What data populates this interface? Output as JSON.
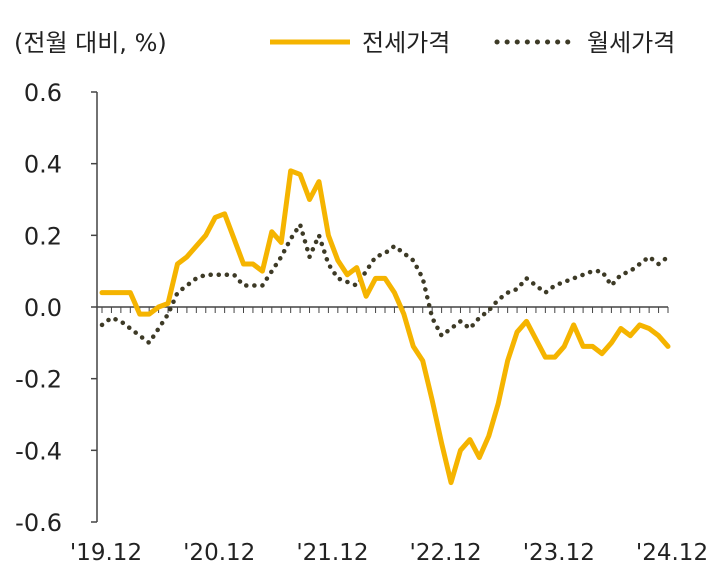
{
  "chart_data": {
    "type": "line",
    "unit_label": "(전월 대비, %)",
    "ylim": [
      -0.6,
      0.6
    ],
    "y_ticks": [
      "0.6",
      "0.4",
      "0.2",
      "0.0",
      "-0.2",
      "-0.4",
      "-0.6"
    ],
    "x_ticks": [
      "'19.12",
      "'20.12",
      "'21.12",
      "'22.12",
      "'23.12",
      "'24.12"
    ],
    "x_tick_positions": [
      0,
      12,
      24,
      36,
      48,
      60
    ],
    "legend": [
      "전세가격",
      "월세가격"
    ],
    "colors": {
      "jeonse": "#f5b400",
      "wolse": "#3d3a26",
      "axis": "#444444"
    },
    "series": [
      {
        "name": "전세가격",
        "style": "solid",
        "values": [
          0.04,
          0.04,
          0.04,
          0.04,
          -0.02,
          -0.02,
          0.0,
          0.01,
          0.12,
          0.14,
          0.17,
          0.2,
          0.25,
          0.26,
          0.19,
          0.12,
          0.12,
          0.1,
          0.21,
          0.18,
          0.38,
          0.37,
          0.3,
          0.35,
          0.2,
          0.13,
          0.09,
          0.11,
          0.03,
          0.08,
          0.08,
          0.04,
          -0.02,
          -0.11,
          -0.15,
          -0.26,
          -0.38,
          -0.49,
          -0.4,
          -0.37,
          -0.42,
          -0.36,
          -0.27,
          -0.15,
          -0.07,
          -0.04,
          -0.09,
          -0.14,
          -0.14,
          -0.11,
          -0.05,
          -0.11,
          -0.11,
          -0.13,
          -0.1,
          -0.06,
          -0.08,
          -0.05,
          -0.06,
          -0.08,
          -0.11
        ]
      },
      {
        "name": "월세가격",
        "style": "dotted",
        "values": [
          -0.05,
          -0.03,
          -0.04,
          -0.06,
          -0.08,
          -0.1,
          -0.06,
          -0.02,
          0.04,
          0.06,
          0.08,
          0.09,
          0.09,
          0.09,
          0.09,
          0.06,
          0.06,
          0.06,
          0.1,
          0.14,
          0.19,
          0.23,
          0.14,
          0.2,
          0.12,
          0.08,
          0.07,
          0.06,
          0.1,
          0.14,
          0.15,
          0.17,
          0.15,
          0.13,
          0.08,
          -0.03,
          -0.08,
          -0.06,
          -0.04,
          -0.06,
          -0.03,
          -0.01,
          0.02,
          0.04,
          0.05,
          0.08,
          0.06,
          0.04,
          0.06,
          0.07,
          0.08,
          0.09,
          0.1,
          0.1,
          0.06,
          0.09,
          0.1,
          0.12,
          0.14,
          0.12,
          0.14
        ]
      }
    ]
  }
}
